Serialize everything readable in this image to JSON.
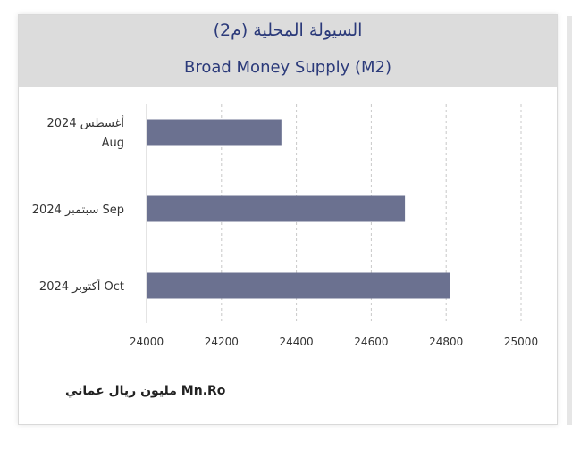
{
  "header": {
    "title_ar": "السيولة المحلية (م2)",
    "title_en": "Broad Money Supply (M2)"
  },
  "footer": {
    "unit_label": "مليون ريال عماني Mn.Ro"
  },
  "chart_data": {
    "type": "bar",
    "orientation": "horizontal",
    "title": "Broad Money Supply (M2)",
    "categories": [
      [
        "أغسطس 2024",
        "Aug"
      ],
      [
        "سبتمبر 2024 Sep"
      ],
      [
        "أكتوبر 2024 Oct"
      ]
    ],
    "values": [
      24360,
      24690,
      24810
    ],
    "xlim": [
      24000,
      25000
    ],
    "xticks": [
      24000,
      24200,
      24400,
      24600,
      24800,
      25000
    ],
    "bar_color": "#6b7190",
    "grid": "vertical dashed",
    "xlabel": "مليون ريال عماني Mn.Ro"
  }
}
